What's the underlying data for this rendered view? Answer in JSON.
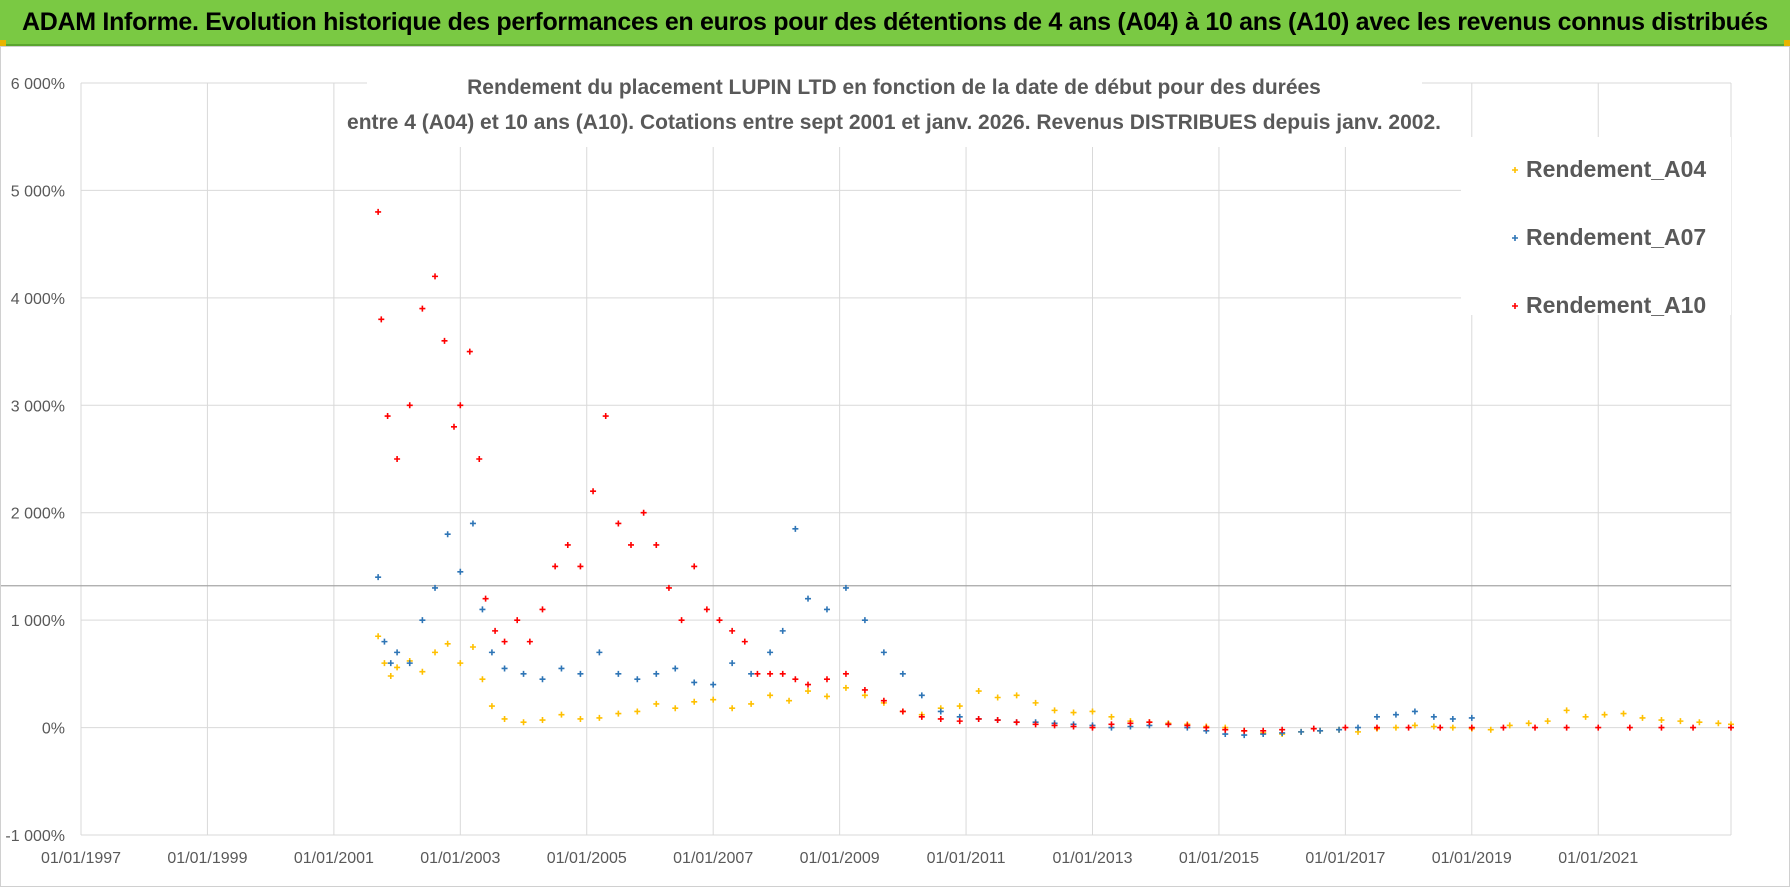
{
  "header": {
    "title": "ADAM Informe. Evolution historique des performances en euros pour des détentions de 4 ans (A04) à 10 ans (A10) avec les revenus connus distribués"
  },
  "colors": {
    "banner": "#7ac943",
    "a04": "#ffc000",
    "a07": "#2e75b6",
    "a10": "#ff0000",
    "grid": "#d9d9d9",
    "text": "#595959"
  },
  "chart_data": {
    "type": "scatter",
    "title_lines": [
      "Rendement du placement LUPIN LTD en fonction de la date de début pour des durées",
      "entre 4 (A04) et 10 ans (A10). Cotations entre sept 2001 et janv. 2026. Revenus DISTRIBUES depuis janv. 2002."
    ],
    "xlabel": "",
    "ylabel": "",
    "xlim": [
      1997.0,
      2023.1
    ],
    "ylim": [
      -1000,
      6000
    ],
    "x_ticks": [
      1997,
      1999,
      2001,
      2003,
      2005,
      2007,
      2009,
      2011,
      2013,
      2015,
      2017,
      2019,
      2021
    ],
    "x_tick_labels": [
      "01/01/1997",
      "01/01/1999",
      "01/01/2001",
      "01/01/2003",
      "01/01/2005",
      "01/01/2007",
      "01/01/2009",
      "01/01/2011",
      "01/01/2013",
      "01/01/2015",
      "01/01/2017",
      "01/01/2019",
      "01/01/2021"
    ],
    "y_ticks": [
      -1000,
      0,
      1000,
      2000,
      3000,
      4000,
      5000,
      6000
    ],
    "y_tick_labels": [
      "-1 000%",
      "0%",
      "1 000%",
      "2 000%",
      "3 000%",
      "4 000%",
      "5 000%",
      "6 000%"
    ],
    "reference_line_y": 1320,
    "legend_position": "top-right",
    "series": [
      {
        "name": "Rendement_A04",
        "color": "#ffc000",
        "x": [
          2001.7,
          2001.8,
          2001.9,
          2002.0,
          2002.2,
          2002.4,
          2002.6,
          2002.8,
          2003.0,
          2003.2,
          2003.35,
          2003.5,
          2003.7,
          2004.0,
          2004.3,
          2004.6,
          2004.9,
          2005.2,
          2005.5,
          2005.8,
          2006.1,
          2006.4,
          2006.7,
          2007.0,
          2007.3,
          2007.6,
          2007.9,
          2008.2,
          2008.5,
          2008.8,
          2009.1,
          2009.4,
          2009.7,
          2010.0,
          2010.3,
          2010.6,
          2010.9,
          2011.2,
          2011.5,
          2011.8,
          2012.1,
          2012.4,
          2012.7,
          2013.0,
          2013.3,
          2013.6,
          2013.9,
          2014.2,
          2014.5,
          2014.8,
          2015.1,
          2015.4,
          2015.7,
          2016.0,
          2016.3,
          2016.6,
          2016.9,
          2017.2,
          2017.5,
          2017.8,
          2018.1,
          2018.4,
          2018.7,
          2019.0,
          2019.3,
          2019.6,
          2019.9,
          2020.2,
          2020.5,
          2020.8,
          2021.1,
          2021.4,
          2021.7,
          2022.0,
          2022.3,
          2022.6,
          2022.9,
          2023.1
        ],
        "y": [
          850,
          600,
          480,
          560,
          620,
          520,
          700,
          780,
          600,
          750,
          450,
          200,
          80,
          50,
          70,
          120,
          80,
          90,
          130,
          150,
          220,
          180,
          240,
          260,
          180,
          220,
          300,
          250,
          340,
          290,
          370,
          300,
          230,
          150,
          120,
          180,
          200,
          340,
          280,
          300,
          230,
          160,
          140,
          150,
          100,
          60,
          50,
          40,
          30,
          10,
          0,
          -30,
          -50,
          -60,
          -40,
          -30,
          -20,
          -40,
          -10,
          0,
          20,
          10,
          0,
          -10,
          -20,
          20,
          40,
          60,
          160,
          100,
          120,
          130,
          90,
          70,
          60,
          50,
          40,
          30
        ]
      },
      {
        "name": "Rendement_A07",
        "color": "#2e75b6",
        "x": [
          2001.7,
          2001.8,
          2001.9,
          2002.0,
          2002.2,
          2002.4,
          2002.6,
          2002.8,
          2003.0,
          2003.2,
          2003.35,
          2003.5,
          2003.7,
          2004.0,
          2004.3,
          2004.6,
          2004.9,
          2005.2,
          2005.5,
          2005.8,
          2006.1,
          2006.4,
          2006.7,
          2007.0,
          2007.3,
          2007.6,
          2007.9,
          2008.1,
          2008.3,
          2008.5,
          2008.8,
          2009.1,
          2009.4,
          2009.7,
          2010.0,
          2010.3,
          2010.6,
          2010.9,
          2011.2,
          2011.5,
          2011.8,
          2012.1,
          2012.4,
          2012.7,
          2013.0,
          2013.3,
          2013.6,
          2013.9,
          2014.2,
          2014.5,
          2014.8,
          2015.1,
          2015.4,
          2015.7,
          2016.0,
          2016.3,
          2016.6,
          2016.9,
          2017.2,
          2017.5,
          2017.8,
          2018.1,
          2018.4,
          2018.7,
          2019.0
        ],
        "y": [
          1400,
          800,
          600,
          700,
          600,
          1000,
          1300,
          1800,
          1450,
          1900,
          1100,
          700,
          550,
          500,
          450,
          550,
          500,
          700,
          500,
          450,
          500,
          550,
          420,
          400,
          600,
          500,
          700,
          900,
          1850,
          1200,
          1100,
          1300,
          1000,
          700,
          500,
          300,
          150,
          100,
          80,
          70,
          50,
          50,
          40,
          30,
          20,
          0,
          10,
          20,
          30,
          0,
          -30,
          -60,
          -70,
          -60,
          -50,
          -40,
          -30,
          -20,
          0,
          100,
          120,
          150,
          100,
          80,
          90
        ]
      },
      {
        "name": "Rendement_A10",
        "color": "#ff0000",
        "x": [
          2001.7,
          2001.75,
          2001.85,
          2002.0,
          2002.2,
          2002.4,
          2002.6,
          2002.75,
          2002.9,
          2003.0,
          2003.15,
          2003.3,
          2003.4,
          2003.55,
          2003.7,
          2003.9,
          2004.1,
          2004.3,
          2004.5,
          2004.7,
          2004.9,
          2005.1,
          2005.3,
          2005.5,
          2005.7,
          2005.9,
          2006.1,
          2006.3,
          2006.5,
          2006.7,
          2006.9,
          2007.1,
          2007.3,
          2007.5,
          2007.7,
          2007.9,
          2008.1,
          2008.3,
          2008.5,
          2008.8,
          2009.1,
          2009.4,
          2009.7,
          2010.0,
          2010.3,
          2010.6,
          2010.9,
          2011.2,
          2011.5,
          2011.8,
          2012.1,
          2012.4,
          2012.7,
          2013.0,
          2013.3,
          2013.6,
          2013.9,
          2014.2,
          2014.5,
          2014.8,
          2015.1,
          2015.4,
          2015.7,
          2016.0,
          2016.5,
          2017.0,
          2017.5,
          2018.0,
          2018.5,
          2019.0,
          2019.5,
          2020.0,
          2020.5,
          2021.0,
          2021.5,
          2022.0,
          2022.5,
          2023.1
        ],
        "y": [
          4800,
          3800,
          2900,
          2500,
          3000,
          3900,
          4200,
          3600,
          2800,
          3000,
          3500,
          2500,
          1200,
          900,
          800,
          1000,
          800,
          1100,
          1500,
          1700,
          1500,
          2200,
          2900,
          1900,
          1700,
          2000,
          1700,
          1300,
          1000,
          1500,
          1100,
          1000,
          900,
          800,
          500,
          500,
          500,
          450,
          400,
          450,
          500,
          350,
          250,
          150,
          100,
          80,
          60,
          80,
          70,
          50,
          30,
          20,
          10,
          0,
          30,
          40,
          50,
          30,
          20,
          0,
          -20,
          -30,
          -30,
          -20,
          -10,
          0,
          0,
          0,
          0,
          0,
          0,
          0,
          0,
          0,
          0,
          0,
          0,
          0
        ]
      }
    ]
  }
}
